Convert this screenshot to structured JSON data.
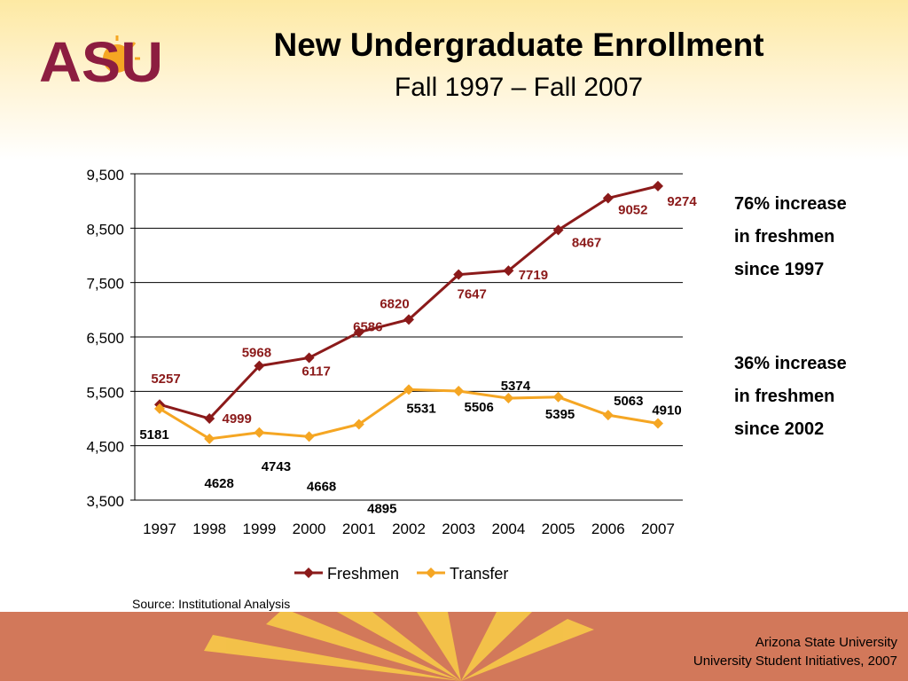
{
  "slide": {
    "title": "New Undergraduate Enrollment",
    "subtitle": "Fall 1997 – Fall 2007",
    "logo_text": "ASU",
    "notes": [
      [
        "76% increase",
        "in freshmen",
        "since 1997"
      ],
      [
        "36% increase",
        "in freshmen",
        "since 2002"
      ]
    ],
    "source": "Source:  Institutional Analysis",
    "footer": [
      "Arizona State University",
      "University Student Initiatives, 2007"
    ]
  },
  "colors": {
    "freshmen": "#8b1a1a",
    "transfer": "#f5a623",
    "logo": "#8c1d40",
    "footer": "#d2785a"
  },
  "chart_data": {
    "type": "line",
    "x": [
      "1997",
      "1998",
      "1999",
      "2000",
      "2001",
      "2002",
      "2003",
      "2004",
      "2005",
      "2006",
      "2007"
    ],
    "ylim": [
      3500,
      9500
    ],
    "yticks": [
      3500,
      4500,
      5500,
      6500,
      7500,
      8500,
      9500
    ],
    "ytick_labels": [
      "3,500",
      "4,500",
      "5,500",
      "6,500",
      "7,500",
      "8,500",
      "9,500"
    ],
    "grid": true,
    "legend": "bottom",
    "series": [
      {
        "name": "Freshmen",
        "values": [
          5257,
          4999,
          5968,
          6117,
          6586,
          6820,
          7647,
          7719,
          8467,
          9052,
          9274
        ]
      },
      {
        "name": "Transfer",
        "values": [
          5181,
          4628,
          4743,
          4668,
          4895,
          5531,
          5506,
          5374,
          5395,
          5063,
          4910
        ]
      }
    ]
  }
}
